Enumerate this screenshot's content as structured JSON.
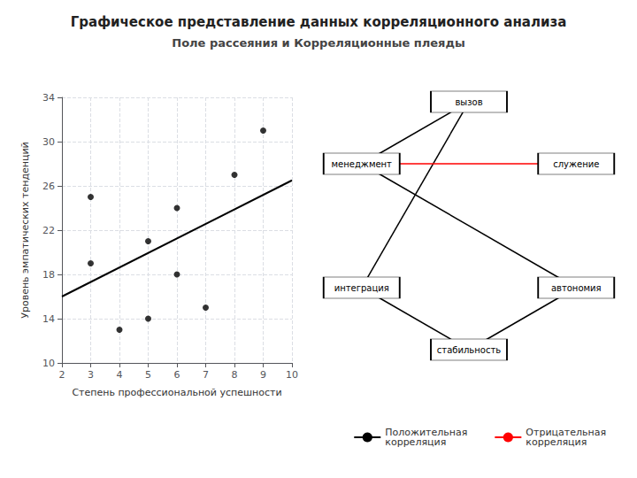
{
  "chart_data": [
    {
      "type": "scatter",
      "title": "Графическое представление данных корреляционного анализа",
      "subtitle": "Поле рассеяния и Корреляционные плеяды",
      "xlabel": "Степень профессиональной успешности",
      "ylabel": "Уровень эмпатических тенденций",
      "xlim": [
        2,
        10
      ],
      "ylim": [
        10,
        34
      ],
      "xticks": [
        2,
        3,
        4,
        5,
        6,
        7,
        8,
        9,
        10
      ],
      "yticks": [
        10,
        14,
        18,
        22,
        26,
        30,
        34
      ],
      "grid": true,
      "series": [
        {
          "type": "scatter",
          "color": "black",
          "x": [
            3,
            3,
            4,
            5,
            5,
            6,
            6,
            7,
            8,
            9
          ],
          "values": [
            25,
            19,
            13,
            21,
            14,
            24,
            18,
            15,
            27,
            31
          ]
        },
        {
          "type": "line",
          "color": "black",
          "x": [
            2,
            10
          ],
          "values": [
            16.0,
            26.5
          ]
        }
      ]
    },
    {
      "type": "graph",
      "nodes": [
        "автономия",
        "стабильность",
        "интеграция",
        "менеджмент",
        "вызов",
        "служение"
      ],
      "legend": "lower right",
      "series": [
        {
          "name": "Положительная\nкорреляция",
          "color": "black",
          "edges": [
            [
              "автономия",
              "стабильность"
            ],
            [
              "автономия",
              "менеджмент"
            ],
            [
              "стабильность",
              "интеграция"
            ],
            [
              "менеджмент",
              "вызов"
            ],
            [
              "интеграция",
              "вызов"
            ]
          ]
        },
        {
          "name": "Отрицательная\nкорреляция",
          "color": "red",
          "edges": [
            [
              "менеджмент",
              "служение"
            ]
          ]
        }
      ]
    }
  ]
}
